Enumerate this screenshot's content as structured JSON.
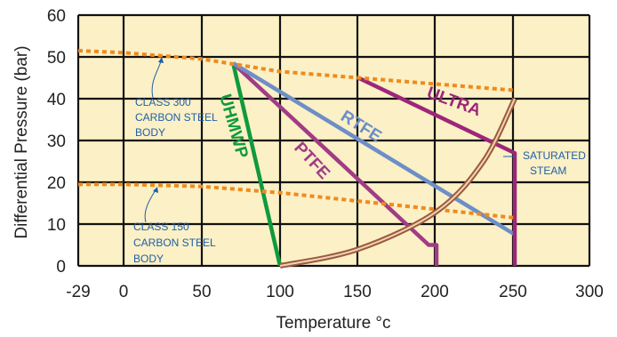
{
  "chart_data": {
    "type": "line",
    "xlabel": "Temperature °c",
    "ylabel": "Differential Pressure (bar)",
    "x_ticks": [
      "-29",
      "0",
      "50",
      "100",
      "150",
      "200",
      "250",
      "300"
    ],
    "y_ticks": [
      "0",
      "10",
      "20",
      "30",
      "40",
      "50",
      "60"
    ],
    "ylim": [
      0,
      60
    ],
    "xlim": [
      -29,
      300
    ],
    "grid": true,
    "background": "#fbf0c6",
    "series": [
      {
        "name": "UHMWP",
        "color": "#0f9a3c",
        "points": [
          [
            70,
            48.5
          ],
          [
            100,
            0
          ]
        ]
      },
      {
        "name": "PTFE",
        "color": "#a03c86",
        "points": [
          [
            70,
            48.5
          ],
          [
            195,
            5
          ],
          [
            200,
            5
          ],
          [
            200,
            0
          ]
        ]
      },
      {
        "name": "RTFE",
        "color": "#6d8ec7",
        "points": [
          [
            70,
            48.5
          ],
          [
            250,
            7.5
          ]
        ]
      },
      {
        "name": "ULTRA",
        "color": "#9d2679",
        "points": [
          [
            150,
            45
          ],
          [
            250,
            27
          ],
          [
            250,
            0
          ]
        ]
      },
      {
        "name": "CLASS 300 CARBON STEEL BODY",
        "color": "#f08a1c",
        "dashed": true,
        "points": [
          [
            -29,
            51.5
          ],
          [
            0,
            51
          ],
          [
            50,
            49.5
          ],
          [
            100,
            46.5
          ],
          [
            150,
            45
          ],
          [
            200,
            43.5
          ],
          [
            250,
            42
          ]
        ]
      },
      {
        "name": "CLASS 150 CARBON STEEL BODY",
        "color": "#f08a1c",
        "dashed": true,
        "points": [
          [
            -29,
            19.5
          ],
          [
            0,
            19.5
          ],
          [
            50,
            19
          ],
          [
            100,
            17.5
          ],
          [
            150,
            15.5
          ],
          [
            200,
            13.5
          ],
          [
            250,
            11.5
          ]
        ]
      },
      {
        "name": "SATURATED STEAM",
        "color": "#9b5a3c",
        "curve": true,
        "points": [
          [
            100,
            0
          ],
          [
            150,
            4
          ],
          [
            200,
            13
          ],
          [
            230,
            25
          ],
          [
            250,
            40
          ]
        ]
      }
    ],
    "labels": {
      "uhmwp": "UHMWP",
      "ptfe": "PTFE",
      "rtfe": "RTFE",
      "ultra": "ULTRA",
      "class300": [
        "CLASS 300",
        "CARBON STEEL",
        "BODY"
      ],
      "class150": [
        "CLASS 150",
        "CARBON STEEL",
        "BODY"
      ],
      "steam": [
        "SATURATED",
        "STEAM"
      ]
    }
  }
}
